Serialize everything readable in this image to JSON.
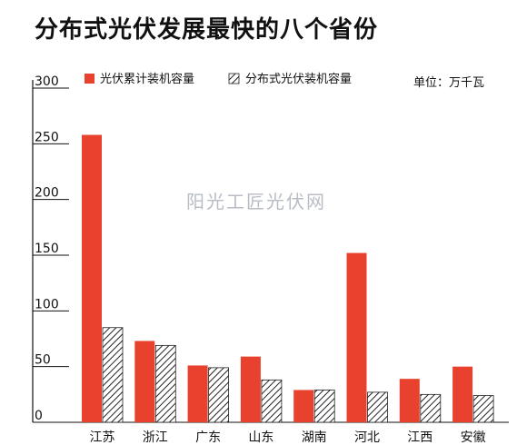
{
  "title": "分布式光伏发展最快的八个省份",
  "unit_label": "单位：万千瓦",
  "watermark": "阳光工匠光伏网",
  "colors": {
    "red": "#e8412e",
    "hatch": "#222222"
  },
  "chart_data": {
    "type": "bar",
    "title": "分布式光伏发展最快的八个省份",
    "categories": [
      "江苏",
      "浙江",
      "广东",
      "山东",
      "湖南",
      "河北",
      "江西",
      "安徽"
    ],
    "series": [
      {
        "name": "光伏累计装机容量",
        "values": [
          258,
          73,
          51,
          59,
          29,
          152,
          39,
          50
        ]
      },
      {
        "name": "分布式光伏装机容量",
        "values": [
          85,
          69,
          49,
          38,
          29,
          27,
          25,
          24
        ]
      }
    ],
    "yticks": [
      0,
      50,
      100,
      150,
      200,
      250,
      300
    ],
    "ylim": [
      0,
      300
    ],
    "grid": false,
    "legend_position": "top-left"
  }
}
